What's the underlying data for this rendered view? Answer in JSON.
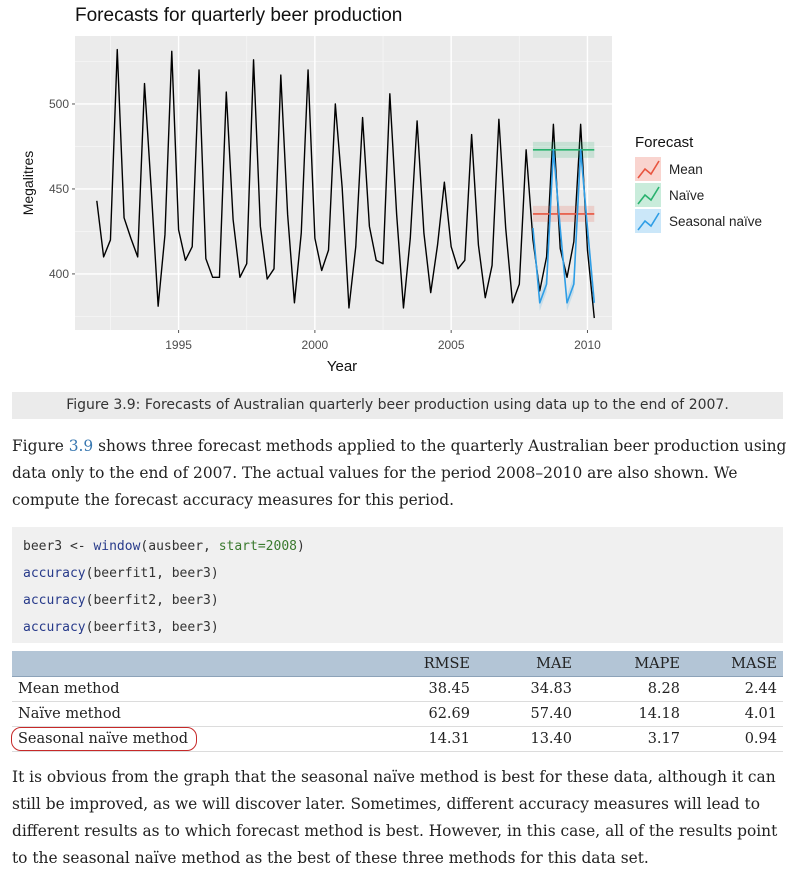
{
  "chart_data": {
    "type": "line",
    "title": "Forecasts for quarterly beer production",
    "xlabel": "Year",
    "ylabel": "Megalitres",
    "xlim": [
      1991.2,
      2010.9
    ],
    "ylim": [
      367,
      540
    ],
    "x_ticks": [
      "1995",
      "2000",
      "2005",
      "2010"
    ],
    "y_ticks": [
      "400",
      "450",
      "500"
    ],
    "grid": true,
    "legend_title": "Forecast",
    "legend_position": "right",
    "series": [
      {
        "name": "",
        "color": "#000000",
        "start_year": 1992,
        "frequency": 4,
        "values": [
          443,
          410,
          420,
          532,
          433,
          421,
          410,
          512,
          449,
          381,
          423,
          531,
          426,
          408,
          416,
          520,
          409,
          398,
          398,
          507,
          432,
          398,
          406,
          526,
          428,
          397,
          403,
          517,
          435,
          383,
          424,
          520,
          421,
          402,
          414,
          500,
          451,
          380,
          416,
          492,
          428,
          408,
          406,
          506,
          435,
          380,
          421,
          490,
          424,
          389,
          417,
          454,
          416,
          403,
          408,
          482,
          417,
          386,
          405,
          491,
          427,
          383,
          394,
          473,
          420,
          390,
          410,
          488,
          415,
          398,
          419,
          488,
          414,
          374
        ]
      },
      {
        "name": "Mean",
        "color": "#e8543f",
        "start_year": 2008,
        "frequency": 4,
        "values": [
          435.3,
          435.3,
          435.3,
          435.3,
          435.3,
          435.3,
          435.3,
          435.3,
          435.3,
          435.3
        ]
      },
      {
        "name": "Naïve",
        "color": "#29b26e",
        "start_year": 2008,
        "frequency": 4,
        "values": [
          473,
          473,
          473,
          473,
          473,
          473,
          473,
          473,
          473,
          473
        ]
      },
      {
        "name": "Seasonal naïve",
        "color": "#2f9ee6",
        "start_year": 2008,
        "frequency": 4,
        "values": [
          427,
          383,
          394,
          473,
          427,
          383,
          394,
          473,
          427,
          383
        ]
      }
    ]
  },
  "caption": "Figure 3.9: Forecasts of Australian quarterly beer production using data up to the end of 2007.",
  "para1": {
    "before_link": "Figure ",
    "link": "3.9",
    "after_link": " shows three forecast methods applied to the quarterly Australian beer production using data only to the end of 2007. The actual values for the period 2008–2010 are also shown. We compute the forecast accuracy measures for this period."
  },
  "code": {
    "line1": {
      "var": "beer3 <- ",
      "fn": "window",
      "open": "(ausbeer, ",
      "arg": "start=",
      "num": "2008",
      "close": ")"
    },
    "line2": {
      "fn": "accuracy",
      "rest": "(beerfit1, beer3)"
    },
    "line3": {
      "fn": "accuracy",
      "rest": "(beerfit2, beer3)"
    },
    "line4": {
      "fn": "accuracy",
      "rest": "(beerfit3, beer3)"
    }
  },
  "table": {
    "headers": [
      "",
      "RMSE",
      "MAE",
      "MAPE",
      "MASE"
    ],
    "rows": [
      {
        "method": "Mean method",
        "rmse": "38.45",
        "mae": "34.83",
        "mape": "8.28",
        "mase": "2.44"
      },
      {
        "method": "Naïve method",
        "rmse": "62.69",
        "mae": "57.40",
        "mape": "14.18",
        "mase": "4.01"
      },
      {
        "method": "Seasonal naïve method",
        "rmse": "14.31",
        "mae": "13.40",
        "mape": "3.17",
        "mase": "0.94"
      }
    ]
  },
  "para2": "It is obvious from the graph that the seasonal naïve method is best for these data, although it can still be improved, as we will discover later. Sometimes, different accuracy measures will lead to different results as to which forecast method is best. However, in this case, all of the results point to the seasonal naïve method as the best of these three methods for this data set."
}
